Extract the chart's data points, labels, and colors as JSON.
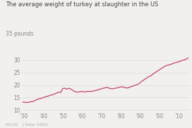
{
  "title": "The average weight of turkey at slaughter in the US",
  "ylabel_text": "35 pounds",
  "footer": "ATLAS    | Data: USDA",
  "line_color": "#c0446e",
  "bg_color": "#f2f0ed",
  "grid_color": "#e0deda",
  "text_color": "#888888",
  "title_color": "#444444",
  "xlim": [
    1929,
    2016
  ],
  "ylim": [
    9.5,
    36
  ],
  "yticks": [
    10,
    15,
    20,
    25,
    30
  ],
  "xticks": [
    1930,
    1940,
    1950,
    1960,
    1970,
    1980,
    1990,
    2000,
    2010
  ],
  "xtick_labels": [
    "'30",
    "'40",
    "'50",
    "'60",
    "'70",
    "'80",
    "'90",
    "'00",
    "'10"
  ],
  "data": {
    "years": [
      1929,
      1930,
      1931,
      1932,
      1933,
      1934,
      1935,
      1936,
      1937,
      1938,
      1939,
      1940,
      1941,
      1942,
      1943,
      1944,
      1945,
      1946,
      1947,
      1948,
      1949,
      1950,
      1951,
      1952,
      1953,
      1954,
      1955,
      1956,
      1957,
      1958,
      1959,
      1960,
      1961,
      1962,
      1963,
      1964,
      1965,
      1966,
      1967,
      1968,
      1969,
      1970,
      1971,
      1972,
      1973,
      1974,
      1975,
      1976,
      1977,
      1978,
      1979,
      1980,
      1981,
      1982,
      1983,
      1984,
      1985,
      1986,
      1987,
      1988,
      1989,
      1990,
      1991,
      1992,
      1993,
      1994,
      1995,
      1996,
      1997,
      1998,
      1999,
      2000,
      2001,
      2002,
      2003,
      2004,
      2005,
      2006,
      2007,
      2008,
      2009,
      2010,
      2011,
      2012,
      2013,
      2014,
      2015
    ],
    "weights": [
      13.1,
      13.2,
      13.0,
      13.1,
      13.2,
      13.4,
      13.5,
      14.0,
      14.3,
      14.5,
      14.7,
      15.0,
      15.3,
      15.5,
      15.7,
      16.0,
      16.2,
      16.5,
      16.8,
      17.2,
      17.0,
      18.5,
      18.8,
      18.3,
      18.7,
      18.5,
      18.0,
      17.5,
      17.2,
      17.2,
      17.3,
      17.5,
      17.2,
      17.3,
      17.5,
      17.4,
      17.5,
      17.6,
      17.8,
      18.0,
      18.2,
      18.5,
      18.7,
      18.9,
      19.0,
      18.8,
      18.5,
      18.5,
      18.7,
      18.8,
      19.0,
      19.2,
      19.3,
      19.0,
      18.8,
      18.9,
      19.2,
      19.5,
      19.8,
      20.0,
      20.3,
      20.8,
      21.5,
      22.0,
      22.5,
      23.0,
      23.5,
      23.8,
      24.5,
      25.0,
      25.5,
      26.0,
      26.5,
      27.0,
      27.5,
      27.8,
      28.0,
      28.2,
      28.5,
      28.8,
      29.0,
      29.2,
      29.5,
      29.8,
      30.0,
      30.3,
      30.8
    ]
  }
}
